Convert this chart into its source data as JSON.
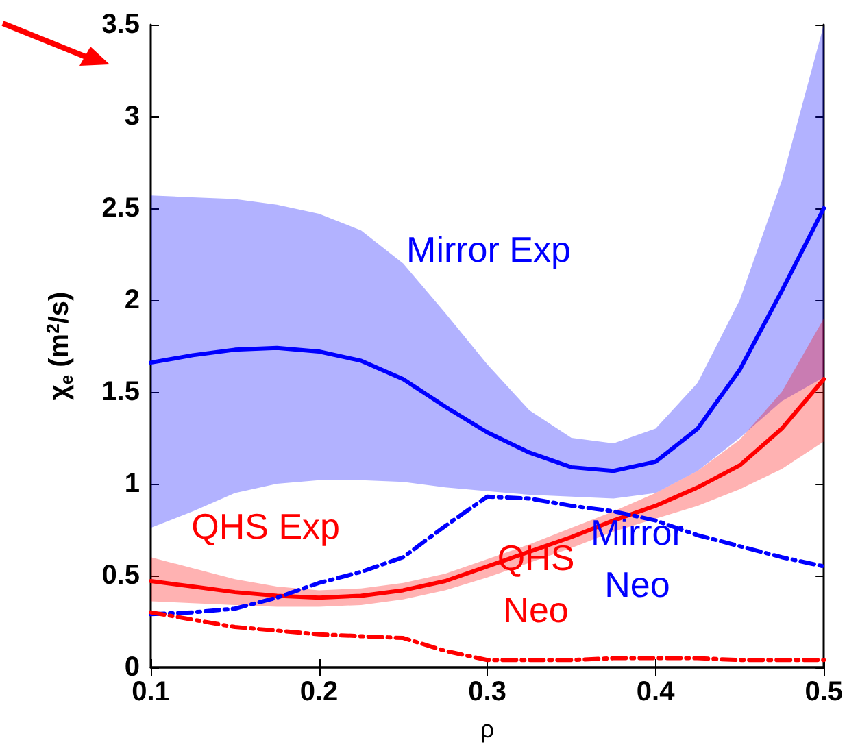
{
  "chart_data": {
    "type": "line",
    "xlabel": "ρ",
    "ylabel": "χ$_{e}$ (m$^{2}$/s)",
    "xlim": [
      0.1,
      0.5
    ],
    "xticks": [
      0.1,
      0.2,
      0.3,
      0.4,
      0.5
    ],
    "ylim": [
      0,
      3.5
    ],
    "yticks": [
      0,
      0.5,
      1,
      1.5,
      2,
      2.5,
      3,
      3.5
    ],
    "grid": false,
    "marker": "none",
    "x": [
      0.1,
      0.125,
      0.15,
      0.175,
      0.2,
      0.225,
      0.25,
      0.275,
      0.3,
      0.325,
      0.35,
      0.375,
      0.4,
      0.425,
      0.45,
      0.475,
      0.5
    ],
    "series": [
      {
        "color": "#0000ff",
        "line_style": "solid",
        "values": [
          1.66,
          1.7,
          1.73,
          1.74,
          1.72,
          1.67,
          1.57,
          1.42,
          1.28,
          1.17,
          1.09,
          1.07,
          1.12,
          1.3,
          1.62,
          2.05,
          2.5
        ],
        "lower": [
          0.76,
          0.85,
          0.95,
          1.0,
          1.02,
          1.02,
          1.01,
          0.98,
          0.96,
          0.94,
          0.93,
          0.92,
          0.95,
          1.07,
          1.25,
          1.45,
          1.58
        ],
        "upper": [
          2.57,
          2.56,
          2.55,
          2.52,
          2.47,
          2.38,
          2.2,
          1.93,
          1.65,
          1.4,
          1.25,
          1.22,
          1.3,
          1.55,
          2.0,
          2.65,
          3.5
        ]
      },
      {
        "color": "#ff0000",
        "line_style": "solid",
        "values": [
          0.47,
          0.44,
          0.41,
          0.39,
          0.38,
          0.39,
          0.42,
          0.47,
          0.55,
          0.63,
          0.71,
          0.8,
          0.88,
          0.98,
          1.1,
          1.3,
          1.57
        ],
        "lower": [
          0.36,
          0.35,
          0.34,
          0.33,
          0.33,
          0.34,
          0.37,
          0.42,
          0.49,
          0.57,
          0.65,
          0.74,
          0.81,
          0.88,
          0.97,
          1.08,
          1.23
        ],
        "upper": [
          0.6,
          0.54,
          0.48,
          0.44,
          0.42,
          0.43,
          0.46,
          0.51,
          0.59,
          0.67,
          0.76,
          0.85,
          0.95,
          1.07,
          1.24,
          1.5,
          1.9
        ]
      },
      {
        "color": "#0000ff",
        "line_style": "dashed",
        "values": [
          0.29,
          0.3,
          0.32,
          0.38,
          0.46,
          0.52,
          0.6,
          0.77,
          0.93,
          0.92,
          0.88,
          0.85,
          0.8,
          0.72,
          0.66,
          0.6,
          0.55
        ]
      },
      {
        "color": "#ff0000",
        "line_style": "dashed",
        "values": [
          0.3,
          0.26,
          0.22,
          0.2,
          0.18,
          0.17,
          0.16,
          0.09,
          0.04,
          0.04,
          0.04,
          0.05,
          0.05,
          0.05,
          0.04,
          0.04,
          0.04
        ]
      }
    ],
    "annotations": [
      "Mirror Exp",
      "QHS Exp",
      "Mirror\nNeo",
      "QHS\nNeo"
    ]
  }
}
